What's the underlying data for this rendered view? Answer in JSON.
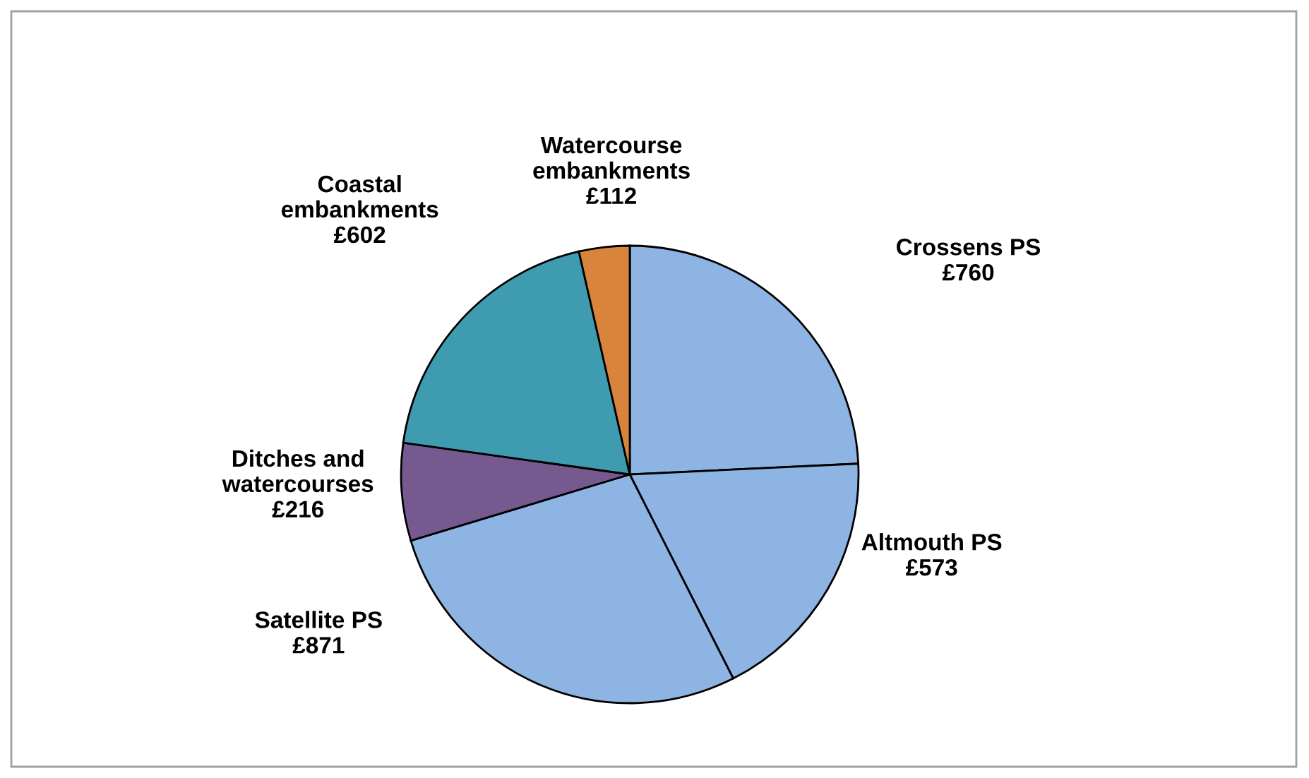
{
  "chart_data": {
    "type": "pie",
    "categories": [
      "Crossens PS",
      "Altmouth PS",
      "Satellite PS",
      "Ditches and\nwatercourses",
      "Coastal\nembankments",
      "Watercourse\nembankments"
    ],
    "values": [
      760,
      573,
      871,
      216,
      602,
      112
    ],
    "value_labels": [
      "£760",
      "£573",
      "£871",
      "£216",
      "£602",
      "£112"
    ],
    "colors": [
      "#8eb4e3",
      "#8eb4e3",
      "#8eb4e3",
      "#76598f",
      "#3f9cb0",
      "#d9843c"
    ],
    "legend": false
  }
}
